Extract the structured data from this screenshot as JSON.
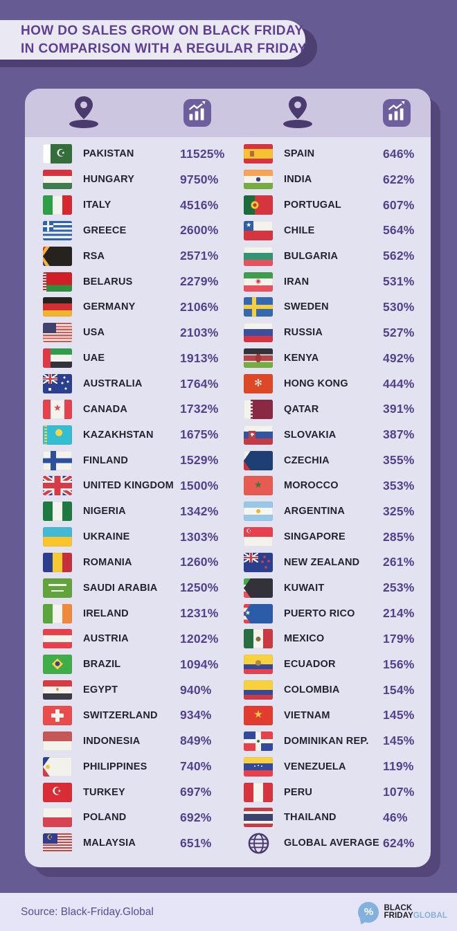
{
  "title": {
    "line1": "HOW DO SALES GROW ON BLACK FRIDAY",
    "line2": "IN COMPARISON WITH A REGULAR FRIDAY"
  },
  "header_icons": [
    "location-pin-icon",
    "sales-growth-chart-icon",
    "location-pin-icon",
    "sales-growth-chart-icon"
  ],
  "chart_data": {
    "type": "table",
    "title": "How do sales grow on Black Friday in comparison with a regular Friday",
    "columns": [
      "country",
      "growth"
    ],
    "left": [
      {
        "country": "PAKISTAN",
        "value": "11525%"
      },
      {
        "country": "HUNGARY",
        "value": "9750%"
      },
      {
        "country": "ITALY",
        "value": "4516%"
      },
      {
        "country": "GREECE",
        "value": "2600%"
      },
      {
        "country": "RSA",
        "value": "2571%"
      },
      {
        "country": "BELARUS",
        "value": "2279%"
      },
      {
        "country": "GERMANY",
        "value": "2106%"
      },
      {
        "country": "USA",
        "value": "2103%"
      },
      {
        "country": "UAE",
        "value": "1913%"
      },
      {
        "country": "AUSTRALIA",
        "value": "1764%"
      },
      {
        "country": "CANADA",
        "value": "1732%"
      },
      {
        "country": "KAZAKHSTAN",
        "value": "1675%"
      },
      {
        "country": "FINLAND",
        "value": "1529%"
      },
      {
        "country": "UNITED KINGDOM",
        "value": "1500%"
      },
      {
        "country": "NIGERIA",
        "value": "1342%"
      },
      {
        "country": "UKRAINE",
        "value": "1303%"
      },
      {
        "country": "ROMANIA",
        "value": "1260%"
      },
      {
        "country": "SAUDI ARABIA",
        "value": "1250%"
      },
      {
        "country": "IRELAND",
        "value": "1231%"
      },
      {
        "country": "AUSTRIA",
        "value": "1202%"
      },
      {
        "country": "BRAZIL",
        "value": "1094%"
      },
      {
        "country": "EGYPT",
        "value": "940%"
      },
      {
        "country": "SWITZERLAND",
        "value": "934%"
      },
      {
        "country": "INDONESIA",
        "value": "849%"
      },
      {
        "country": "PHILIPPINES",
        "value": "740%"
      },
      {
        "country": "TURKEY",
        "value": "697%"
      },
      {
        "country": "POLAND",
        "value": "692%"
      },
      {
        "country": "MALAYSIA",
        "value": "651%"
      }
    ],
    "right": [
      {
        "country": "SPAIN",
        "value": "646%"
      },
      {
        "country": "INDIA",
        "value": "622%"
      },
      {
        "country": "PORTUGAL",
        "value": "607%"
      },
      {
        "country": "CHILE",
        "value": "564%"
      },
      {
        "country": "BULGARIA",
        "value": "562%"
      },
      {
        "country": "IRAN",
        "value": "531%"
      },
      {
        "country": "SWEDEN",
        "value": "530%"
      },
      {
        "country": "RUSSIA",
        "value": "527%"
      },
      {
        "country": "KENYA",
        "value": "492%"
      },
      {
        "country": "HONG KONG",
        "value": "444%"
      },
      {
        "country": "QATAR",
        "value": "391%"
      },
      {
        "country": "SLOVAKIA",
        "value": "387%"
      },
      {
        "country": "CZECHIA",
        "value": "355%"
      },
      {
        "country": "MOROCCO",
        "value": "353%"
      },
      {
        "country": "ARGENTINA",
        "value": "325%"
      },
      {
        "country": "SINGAPORE",
        "value": "285%"
      },
      {
        "country": "NEW ZEALAND",
        "value": "261%"
      },
      {
        "country": "KUWAIT",
        "value": "253%"
      },
      {
        "country": "PUERTO RICO",
        "value": "214%"
      },
      {
        "country": "MEXICO",
        "value": "179%"
      },
      {
        "country": "ECUADOR",
        "value": "156%"
      },
      {
        "country": "COLOMBIA",
        "value": "154%"
      },
      {
        "country": "VIETNAM",
        "value": "145%"
      },
      {
        "country": "DOMINIKAN REP.",
        "value": "145%"
      },
      {
        "country": "VENEZUELA",
        "value": "119%"
      },
      {
        "country": "PERU",
        "value": "107%"
      },
      {
        "country": "THAILAND",
        "value": "46%"
      },
      {
        "country": "GLOBAL AVERAGE",
        "value": "624%"
      }
    ]
  },
  "flags": {
    "PAKISTAN": {
      "bg": "linear-gradient(90deg,#fff 0 11px,#336e3b 11px)",
      "emblems": [
        [
          "☪",
          "#ffffff",
          15,
          "62%",
          "48%"
        ]
      ]
    },
    "HUNGARY": {
      "bg": "linear-gradient(180deg,#d7333f 0 33%,#f4f2ec 33% 67%,#3f7d4e 67%)"
    },
    "ITALY": {
      "bg": "linear-gradient(90deg,#2e9e48 0 33%,#f4f2ec 33% 67%,#d52b2f 67%)"
    },
    "GREECE": {
      "bg": "linear-gradient(90deg,transparent 6px,#f2f1ec 6px 9px,transparent 9px) 0 0/15px 15px no-repeat,linear-gradient(180deg,transparent 6px,#f2f1ec 6px 9px,transparent 9px) 0 0/15px 15px no-repeat,linear-gradient(#2e63b2,#2e63b2) 0 0/15px 15px no-repeat,repeating-linear-gradient(180deg,#2e63b2 0 3.1px,#f2f1ec 3.1px 6.2px)"
    },
    "RSA": {
      "bg": "conic-gradient(from 35deg at 0% 50%,#26231f 0 110deg,transparent 110deg),conic-gradient(from 30deg at -4px 50%,#f9b233 0 120deg,transparent 120deg),linear-gradient(180deg,#dd3b36 0 33%,#f2f1ec 33% 41%,#1c7a4a 41% 59%,#f2f1ec 59% 67%,#2b3f8f 67%)"
    },
    "BELARUS": {
      "bg": "repeating-linear-gradient(180deg,#cf2028 0 2px,transparent 2px 4px) 0 0/5px 100% no-repeat,linear-gradient(90deg,#f2f1ec 0 5px,transparent 5px),linear-gradient(180deg,#cf2028 0 66%,#2f8f3c 66%)"
    },
    "GERMANY": {
      "bg": "linear-gradient(180deg,#26231f 0 33%,#d03033 33% 67%,#f0b52d 67%)"
    },
    "USA": {
      "bg": "linear-gradient(#41416e,#41416e) 0 0/19px 15px no-repeat,repeating-linear-gradient(180deg,#e05252 0 2.16px,#f4f2ec 2.16px 4.31px)"
    },
    "UAE": {
      "bg": "linear-gradient(90deg,#e23744 0 11px,transparent 11px),linear-gradient(180deg,#2f9e4c 0 33%,#f4f2ec 33% 67%,#33323a 67%)"
    },
    "AUSTRALIA": {
      "bg": "radial-gradient(circle at 10px 22px,#f2f1ec 0 2.2px,transparent 2.2px),radial-gradient(circle at 31px 5px,#f2f1ec 0 1.5px,transparent 1.5px),radial-gradient(circle at 36px 11px,#f2f1ec 0 1.5px,transparent 1.5px),radial-gradient(circle at 28px 13px,#f2f1ec 0 1.5px,transparent 1.5px),radial-gradient(circle at 33px 21px,#f2f1ec 0 1.5px,transparent 1.5px),linear-gradient(90deg,transparent 9px,#d73b47 9px 12px,transparent 12px) 0 0/21px 14px no-repeat,linear-gradient(180deg,transparent 6px,#d73b47 6px 8px,transparent 8px) 0 0/21px 14px no-repeat,linear-gradient(90deg,transparent 8px,#f2f1ec 8px 13px,transparent 13px) 0 0/21px 14px no-repeat,linear-gradient(180deg,transparent 5px,#f2f1ec 5px 9px,transparent 9px) 0 0/21px 14px no-repeat,linear-gradient(33deg,transparent 45%,#f2f1ec 45% 55%,transparent 55%) 0 0/21px 14px no-repeat,linear-gradient(-33deg,transparent 45%,#f2f1ec 45% 55%,transparent 55%) 0 0/21px 14px no-repeat,linear-gradient(#2b3f8f,#2b3f8f)"
    },
    "CANADA": {
      "bg": "linear-gradient(90deg,#e8414e 0 11px,transparent 11px 31px,#e8414e 31px),linear-gradient(#f4f2ec,#f4f2ec)",
      "emblems": [
        [
          "★",
          "#e8414e",
          13,
          "50%",
          "48%"
        ]
      ]
    },
    "KAZAKHSTAN": {
      "bg": "repeating-linear-gradient(180deg,#f9d648 0 2.2px,transparent 2.2px 4.4px) 2px 0/4px 100% no-repeat,radial-gradient(circle at 55% 38%,#f9d648 0 5px,transparent 5px),linear-gradient(#35bdd1,#35bdd1)"
    },
    "FINLAND": {
      "bg": "linear-gradient(90deg,transparent 11px,#2d4f9e 11px 19px,transparent 19px),linear-gradient(180deg,transparent 10.5px,#2d4f9e 10.5px 17.5px,transparent 17.5px),linear-gradient(#f4f2ec,#f4f2ec)"
    },
    "UNITED KINGDOM": {
      "bg": "linear-gradient(90deg,transparent 16.5px,#d73b47 16.5px 25.5px,transparent 25.5px),linear-gradient(180deg,transparent 10px,#d73b47 10px 18px,transparent 18px),linear-gradient(90deg,transparent 13.5px,#f2f1ec 13.5px 28.5px,transparent 28.5px),linear-gradient(180deg,transparent 7px,#f2f1ec 7px 21px,transparent 21px),linear-gradient(33.7deg,transparent 45.5%,#d73b47 45.5% 54.5%,transparent 54.5%),linear-gradient(-33.7deg,transparent 45.5%,#d73b47 45.5% 54.5%,transparent 54.5%),linear-gradient(33.7deg,transparent 41%,#f2f1ec 41% 59%,transparent 59%),linear-gradient(-33.7deg,transparent 41%,#f2f1ec 41% 59%,transparent 59%),linear-gradient(#2b3f8f,#2b3f8f)"
    },
    "NIGERIA": {
      "bg": "linear-gradient(90deg,#1e7a40 0 33%,#f4f2ec 33% 67%,#1e7a40 67%)"
    },
    "UKRAINE": {
      "bg": "linear-gradient(180deg,#43b9d5 0 50%,#f8c62c 50%)"
    },
    "ROMANIA": {
      "bg": "linear-gradient(90deg,#2b3f8f 0 33%,#f3c935 33% 67%,#c4303c 67%)"
    },
    "SAUDI ARABIA": {
      "bg": "linear-gradient(#f2f1ec,#f2f1ec) 8px 8px/26px 3px no-repeat,linear-gradient(#f2f1ec,#f2f1ec) 12px 17px/18px 2px no-repeat,linear-gradient(#62a43b,#62a43b)"
    },
    "IRELAND": {
      "bg": "linear-gradient(90deg,#5aa53c 0 33%,#f4f2ec 33% 67%,#ef8a3c 67%)"
    },
    "AUSTRIA": {
      "bg": "linear-gradient(180deg,#e8414e 0 33%,#f4f2ec 33% 67%,#e8414e 67%)"
    },
    "BRAZIL": {
      "bg": "linear-gradient(#3fae49,#3fae49)",
      "emblems": [
        [
          "◆",
          "#f9d648",
          21,
          "50%",
          "47%"
        ],
        [
          "●",
          "#3a3f8f",
          9,
          "50%",
          "49%"
        ]
      ]
    },
    "EGYPT": {
      "bg": "linear-gradient(180deg,#da3b43 0 33%,#f4f2ec 33% 67%,#3c3a44 67%)",
      "emblems": [
        [
          "♦",
          "#c29a3f",
          8,
          "50%",
          "50%"
        ]
      ]
    },
    "SWITZERLAND": {
      "bg": "linear-gradient(#f4f2ec,#f4f2ec) 18px 5px/6px 18px no-repeat,linear-gradient(#f4f2ec,#f4f2ec) 12px 11px/18px 6px no-repeat,linear-gradient(#ea4b4b,#ea4b4b)"
    },
    "INDONESIA": {
      "bg": "linear-gradient(180deg,#c55757 0 50%,#f4f2ec 50%)"
    },
    "PHILIPPINES": {
      "bg": "radial-gradient(circle at 7px 14px,#f3c935 0 3px,transparent 3px),conic-gradient(from 35deg at 0% 50%,#f2f1ec 0 110deg,transparent 110deg),linear-gradient(180deg,#2b3f8f 0 50%,#d73b47 50%)"
    },
    "TURKEY": {
      "bg": "linear-gradient(#da2c35,#da2c35)",
      "emblems": [
        [
          "☪",
          "#ffffff",
          16,
          "48%",
          "48%"
        ]
      ]
    },
    "POLAND": {
      "bg": "linear-gradient(180deg,#f4f2ec 0 50%,#d74352 50%)"
    },
    "MALAYSIA": {
      "bg": "linear-gradient(#323b8c,#323b8c) 0 0/21px 15px no-repeat,repeating-linear-gradient(180deg,#dd3b43 0 2px,#f4f2ec 2px 4px)",
      "emblems": [
        [
          "☪",
          "#f3c935",
          10,
          "24%",
          "26%"
        ]
      ]
    },
    "SPAIN": {
      "bg": "linear-gradient(#b06c3a,#b06c3a) 9px 10px/6px 8px no-repeat,linear-gradient(180deg,#d6343f 0 25%,#f6c233 25% 75%,#d6343f 75%)"
    },
    "INDIA": {
      "bg": "radial-gradient(circle at 50% 50%,#3c3e8f 0 3.2px,transparent 3.2px),linear-gradient(180deg,#f6a455 0 33%,#f4f2ec 33% 67%,#76ad43 67%)"
    },
    "PORTUGAL": {
      "bg": "radial-gradient(circle at 16px 14px,#c0392b 0 2.5px,transparent 2.5px),radial-gradient(circle at 16px 14px,#f3c935 0 5.5px,transparent 5.5px),linear-gradient(90deg,#1d6b3c 0 16px,#d6343f 16px)"
    },
    "CHILE": {
      "bg": "linear-gradient(#2f5fa3,#2f5fa3) 0 0/14px 14px no-repeat,linear-gradient(180deg,#f4f2ec 0 50%,#d6343f 50%)",
      "emblems": [
        [
          "★",
          "#ffffff",
          9,
          "17%",
          "25%"
        ]
      ]
    },
    "BULGARIA": {
      "bg": "linear-gradient(180deg,#f4f2ec 0 33%,#2f9573 33% 67%,#e8525f 67%)"
    },
    "IRAN": {
      "bg": "linear-gradient(180deg,#3f9e4d 0 33%,#f4f2ec 33% 67%,#e8525f 67%)",
      "emblems": [
        [
          "◉",
          "#d6343f",
          9,
          "50%",
          "50%"
        ]
      ]
    },
    "SWEDEN": {
      "bg": "linear-gradient(90deg,transparent 12px,#f7ce3c 12px 18px,transparent 18px),linear-gradient(180deg,transparent 11px,#f7ce3c 11px 17px,transparent 17px),linear-gradient(#3568af,#3568af)"
    },
    "RUSSIA": {
      "bg": "linear-gradient(180deg,#f4f2ec 0 33%,#3c4f9c 33% 67%,#d6343f 67%)"
    },
    "KENYA": {
      "bg": "radial-gradient(7px 10px at 50% 50%,#a93636 0 60%,transparent 61%),linear-gradient(180deg,#33323a 0 30%,#f4f2ec 30% 36%,#b8434a 36% 64%,#f4f2ec 64% 70%,#76ad43 70%)"
    },
    "HONG KONG": {
      "bg": "linear-gradient(#dd4826,#dd4826)",
      "emblems": [
        [
          "✻",
          "#f2f1ec",
          14,
          "50%",
          "50%"
        ]
      ]
    },
    "QATAR": {
      "bg": "repeating-linear-gradient(180deg,#8b2942 0 2.5px,transparent 2.5px 5px) 10px 0/5px 100% no-repeat,linear-gradient(90deg,#f4f2ec 0 13px,#8b2942 13px)"
    },
    "SLOVAKIA": {
      "bg": "linear-gradient(#f2f1ec,#f2f1ec) 11px 11px/2px 5px no-repeat,linear-gradient(#f2f1ec,#f2f1ec) 9.5px 12.5px/5px 2px no-repeat,linear-gradient(#c23c46,#c23c46) 7px 8px/10px 11px no-repeat,linear-gradient(180deg,#f4f2ec 0 33%,#2f55a4 33% 67%,#c23c46 67%)"
    },
    "CZECHIA": {
      "bg": "conic-gradient(from 35deg at 0% 50%,#1d3f73 0 110deg,transparent 110deg),linear-gradient(180deg,#f4f2ec 0 50%,#c8323b 50%)"
    },
    "MOROCCO": {
      "bg": "linear-gradient(#e85b52,#e85b52)",
      "emblems": [
        [
          "★",
          "#2f7a3f",
          13,
          "50%",
          "50%"
        ]
      ]
    },
    "ARGENTINA": {
      "bg": "radial-gradient(circle at 50% 50%,#f0b52d 0 3px,transparent 3px),linear-gradient(180deg,#99c7e8 0 33%,#f6f5f0 33% 67%,#99c7e8 67%)"
    },
    "SINGAPORE": {
      "bg": "linear-gradient(180deg,#e8414e 0 50%,#f4f2ec 50%)",
      "emblems": [
        [
          "☪",
          "#f2f1ec",
          9,
          "18%",
          "25%"
        ]
      ]
    },
    "NEW ZEALAND": {
      "bg": "radial-gradient(circle at 30px 6px,#d73b47 0 1.8px,transparent 1.8px),radial-gradient(circle at 36px 12px,#d73b47 0 1.8px,transparent 1.8px),radial-gradient(circle at 27px 13px,#d73b47 0 1.8px,transparent 1.8px),radial-gradient(circle at 32px 21px,#d73b47 0 1.8px,transparent 1.8px),linear-gradient(90deg,transparent 9px,#d73b47 9px 12px,transparent 12px) 0 0/21px 14px no-repeat,linear-gradient(180deg,transparent 6px,#d73b47 6px 8px,transparent 8px) 0 0/21px 14px no-repeat,linear-gradient(90deg,transparent 8px,#f2f1ec 8px 13px,transparent 13px) 0 0/21px 14px no-repeat,linear-gradient(180deg,transparent 5px,#f2f1ec 5px 9px,transparent 9px) 0 0/21px 14px no-repeat,linear-gradient(33deg,transparent 45%,#f2f1ec 45% 55%,transparent 55%) 0 0/21px 14px no-repeat,linear-gradient(-33deg,transparent 45%,#f2f1ec 45% 55%,transparent 55%) 0 0/21px 14px no-repeat,linear-gradient(#2b3f8f,#2b3f8f)"
    },
    "KUWAIT": {
      "bg": "conic-gradient(from 35deg at 0% 50%,#33323a 0 110deg,transparent 110deg),linear-gradient(180deg,#3fae49 0 33%,#f4f2ec 33% 67%,#e8525f 67%)"
    },
    "PUERTO RICO": {
      "bg": "conic-gradient(from 35deg at 0% 50%,#2b5ca8 0 110deg,transparent 110deg),repeating-linear-gradient(180deg,#e8414e 0 5.6px,#f4f2ec 5.6px 11.2px)",
      "emblems": [
        [
          "★",
          "#ffffff",
          9,
          "14%",
          "50%"
        ]
      ]
    },
    "MEXICO": {
      "bg": "radial-gradient(circle at 50% 52%,#8a6d3b 0 3.5px,transparent 3.5px),linear-gradient(90deg,#276e42 0 33%,#f4f2ec 33% 67%,#cb3a43 67%)"
    },
    "ECUADOR": {
      "bg": "radial-gradient(circle at 50% 43%,#b08948 0 4px,transparent 4px),linear-gradient(180deg,#f7d23e 0 50%,#33499c 50% 75%,#e8414e 75%)"
    },
    "COLOMBIA": {
      "bg": "linear-gradient(180deg,#f7d23e 0 50%,#33499c 50% 75%,#cb3a43 75%)"
    },
    "VIETNAM": {
      "bg": "linear-gradient(#e23c31,#e23c31)",
      "emblems": [
        [
          "★",
          "#f7d23e",
          15,
          "50%",
          "48%"
        ]
      ]
    },
    "DOMINIKAN REP.": {
      "bg": "radial-gradient(circle at 50% 50%,#2f7a3f 0 2px,transparent 2px),linear-gradient(90deg,transparent 17px,#f4f2ec 17px 25px,transparent 25px),linear-gradient(180deg,transparent 11px,#f4f2ec 11px 17px,transparent 17px),conic-gradient(#e8414e 0 25%,#33499c 25% 50%,#e8414e 50% 75%,#33499c 75%)"
    },
    "VENEZUELA": {
      "bg": "radial-gradient(circle at 16px 13px,#f2f1ec 0 1px,transparent 1px),radial-gradient(circle at 21px 12px,#f2f1ec 0 1px,transparent 1px),radial-gradient(circle at 26px 13px,#f2f1ec 0 1px,transparent 1px),linear-gradient(180deg,#f7d23e 0 33%,#33499c 33% 67%,#e8414e 67%)"
    },
    "PERU": {
      "bg": "linear-gradient(90deg,#d6343f 0 33%,#f4f2ec 33% 67%,#d6343f 67%)"
    },
    "THAILAND": {
      "bg": "linear-gradient(180deg,#cb3a43 0 17%,#f4f2ec 17% 33%,#3c4270 33% 67%,#f4f2ec 67% 83%,#cb3a43 83%)"
    },
    "GLOBAL AVERAGE": {
      "globe": true
    }
  },
  "footer": {
    "source": "Source: Black-Friday.Global",
    "logo": {
      "percent": "%",
      "line1": "BLACK",
      "line2_dark": "FRIDAY",
      "line2_accent": "GLOBAL"
    }
  },
  "colors": {
    "bg": "#675b93",
    "card-bg": "#e3e2f0",
    "strip": "#cdc6e0",
    "card-shadow": "#544679",
    "title-bg": "#eae8f1",
    "title-shadow": "#4e3f72",
    "title-text": "#5d3f96",
    "name": "#24222c",
    "value": "#53418f",
    "icon": "#4b3a6d",
    "icon-bg": "#6f5e9e",
    "footer-bg": "#e6e5f7",
    "footer-text": "#574b9d",
    "logo-blue": "#83b1de",
    "logo-dark": "#1d1c21"
  }
}
